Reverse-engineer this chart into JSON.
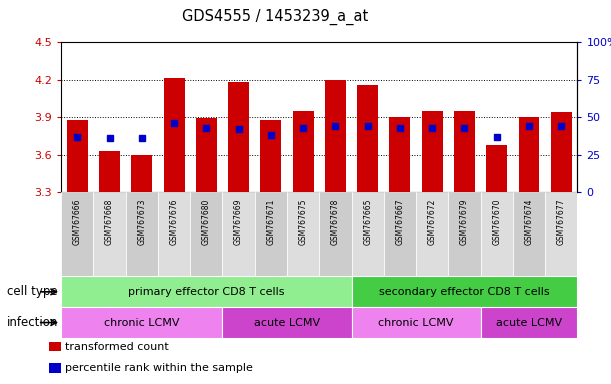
{
  "title": "GDS4555 / 1453239_a_at",
  "samples": [
    "GSM767666",
    "GSM767668",
    "GSM767673",
    "GSM767676",
    "GSM767680",
    "GSM767669",
    "GSM767671",
    "GSM767675",
    "GSM767678",
    "GSM767665",
    "GSM767667",
    "GSM767672",
    "GSM767679",
    "GSM767670",
    "GSM767674",
    "GSM767677"
  ],
  "transformed_count": [
    3.88,
    3.63,
    3.6,
    4.21,
    3.89,
    4.18,
    3.88,
    3.95,
    4.2,
    4.16,
    3.9,
    3.95,
    3.95,
    3.68,
    3.9,
    3.94
  ],
  "percentile_rank": [
    37,
    36,
    36,
    46,
    43,
    42,
    38,
    43,
    44,
    44,
    43,
    43,
    43,
    37,
    44,
    44
  ],
  "ylim_left": [
    3.3,
    4.5
  ],
  "ylim_right": [
    0,
    100
  ],
  "yticks_left": [
    3.3,
    3.6,
    3.9,
    4.2,
    4.5
  ],
  "yticks_right": [
    0,
    25,
    50,
    75,
    100
  ],
  "ytick_labels_left": [
    "3.3",
    "3.6",
    "3.9",
    "4.2",
    "4.5"
  ],
  "ytick_labels_right": [
    "0",
    "25",
    "50",
    "75",
    "100%"
  ],
  "bar_color": "#cc0000",
  "dot_color": "#0000cc",
  "cell_type_groups": [
    {
      "label": "primary effector CD8 T cells",
      "start": 0,
      "end": 8,
      "color": "#90EE90"
    },
    {
      "label": "secondary effector CD8 T cells",
      "start": 9,
      "end": 15,
      "color": "#44CC44"
    }
  ],
  "infection_groups": [
    {
      "label": "chronic LCMV",
      "start": 0,
      "end": 4,
      "color": "#EE82EE"
    },
    {
      "label": "acute LCMV",
      "start": 5,
      "end": 8,
      "color": "#CC44CC"
    },
    {
      "label": "chronic LCMV",
      "start": 9,
      "end": 12,
      "color": "#EE82EE"
    },
    {
      "label": "acute LCMV",
      "start": 13,
      "end": 15,
      "color": "#CC44CC"
    }
  ],
  "legend_items": [
    {
      "label": "transformed count",
      "color": "#cc0000"
    },
    {
      "label": "percentile rank within the sample",
      "color": "#0000cc"
    }
  ],
  "cell_type_label": "cell type",
  "infection_label": "infection",
  "axis_label_color_left": "#cc0000",
  "axis_label_color_right": "#0000cc",
  "sample_bg_color": "#d0d0d0",
  "fig_width": 6.11,
  "fig_height": 3.84,
  "dpi": 100
}
